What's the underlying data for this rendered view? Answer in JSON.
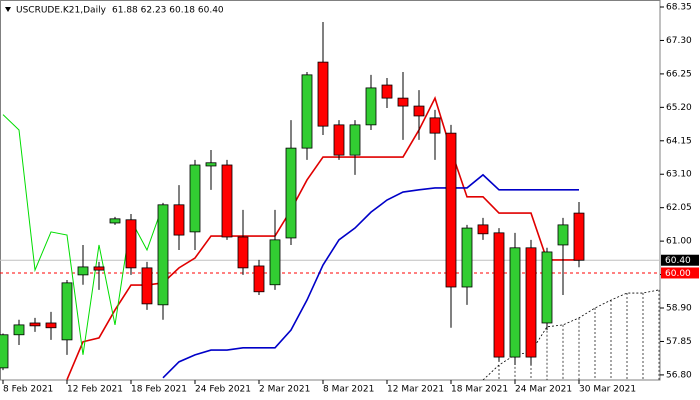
{
  "chart_data": {
    "type": "candlestick",
    "title": "USCRUDE.K21,Daily",
    "ohlc_text": "61.88 62.23 60.18 60.40",
    "categories": [
      "8 Feb 2021",
      null,
      null,
      null,
      "12 Feb 2021",
      null,
      null,
      null,
      "18 Feb 2021",
      null,
      null,
      null,
      "24 Feb 2021",
      null,
      null,
      null,
      "2 Mar 2021",
      null,
      null,
      null,
      "8 Mar 2021",
      null,
      null,
      null,
      "12 Mar 2021",
      null,
      null,
      null,
      "18 Mar 2021",
      null,
      null,
      null,
      "24 Mar 2021",
      null,
      null,
      null,
      "30 Mar 2021",
      null,
      null,
      null,
      null,
      null
    ],
    "open": [
      57.02,
      58.06,
      58.43,
      58.43,
      57.9,
      59.94,
      60.19,
      61.57,
      61.67,
      60.16,
      59.0,
      62.14,
      61.29,
      63.36,
      63.39,
      61.13,
      60.22,
      59.63,
      61.1,
      63.92,
      66.62,
      64.65,
      63.7,
      64.65,
      65.9,
      65.49,
      65.24,
      64.87,
      64.39,
      59.56,
      61.51,
      61.26,
      57.36,
      60.79,
      58.43,
      60.88,
      61.88,
      null,
      null,
      null,
      null,
      null
    ],
    "high": [
      58.1,
      58.53,
      58.59,
      58.78,
      59.78,
      60.88,
      60.35,
      61.76,
      61.85,
      60.35,
      62.2,
      62.76,
      63.55,
      63.86,
      63.55,
      61.98,
      60.41,
      61.98,
      64.8,
      66.31,
      67.88,
      64.8,
      64.8,
      66.22,
      66.12,
      66.31,
      65.74,
      65.12,
      64.65,
      61.51,
      61.73,
      61.41,
      61.26,
      61.04,
      60.79,
      61.73,
      62.23,
      null,
      null,
      null,
      null,
      null
    ],
    "low": [
      56.95,
      57.74,
      58.15,
      57.9,
      57.43,
      59.63,
      59.47,
      61.51,
      59.94,
      58.84,
      58.53,
      60.72,
      60.72,
      62.61,
      61.04,
      59.94,
      59.31,
      59.47,
      60.88,
      63.55,
      64.33,
      63.55,
      63.08,
      64.49,
      65.18,
      64.18,
      64.18,
      63.55,
      58.28,
      59.0,
      61.04,
      57.21,
      57.11,
      57.11,
      58.21,
      59.31,
      60.18,
      null,
      null,
      null,
      null,
      null
    ],
    "close": [
      58.06,
      58.37,
      58.34,
      58.28,
      59.69,
      60.19,
      60.09,
      61.7,
      60.16,
      59.03,
      62.14,
      61.19,
      63.39,
      63.46,
      61.13,
      60.16,
      59.41,
      61.04,
      63.92,
      66.22,
      64.61,
      63.7,
      64.65,
      65.81,
      65.49,
      65.24,
      64.93,
      64.39,
      59.56,
      61.41,
      61.23,
      57.36,
      60.79,
      57.36,
      60.66,
      61.51,
      60.4,
      null,
      null,
      null,
      null,
      null
    ],
    "up_color": "#32cd32",
    "down_color": "#ff0000",
    "lines": [
      {
        "color": "#e00000",
        "width": 1.6,
        "dash": false,
        "values": [
          null,
          null,
          null,
          null,
          56.65,
          57.84,
          57.96,
          58.84,
          59.62,
          59.62,
          59.69,
          60.16,
          60.47,
          61.16,
          61.16,
          61.16,
          61.16,
          61.16,
          61.98,
          62.92,
          63.64,
          63.64,
          63.64,
          63.64,
          63.64,
          63.64,
          64.49,
          65.49,
          63.86,
          62.39,
          62.39,
          61.88,
          61.88,
          61.88,
          60.41,
          60.41,
          60.41,
          null,
          null,
          null,
          null,
          null
        ]
      },
      {
        "color": "#0000c8",
        "width": 1.6,
        "dash": false,
        "values": [
          null,
          null,
          null,
          null,
          null,
          null,
          null,
          null,
          null,
          null,
          56.71,
          57.21,
          57.43,
          57.58,
          57.58,
          57.65,
          57.65,
          57.65,
          58.21,
          59.15,
          60.25,
          61.04,
          61.41,
          61.91,
          62.29,
          62.54,
          62.61,
          62.67,
          62.67,
          62.67,
          63.08,
          62.61,
          62.61,
          62.61,
          62.61,
          62.61,
          62.61,
          null,
          null,
          null,
          null,
          null
        ]
      },
      {
        "color": "#00dd00",
        "width": 1,
        "dash": false,
        "values": [
          64.97,
          64.49,
          60.09,
          61.29,
          61.19,
          57.43,
          60.88,
          58.37,
          61.66,
          60.72,
          62.14,
          null,
          null,
          null,
          null,
          null,
          null,
          null,
          null,
          null,
          null,
          null,
          null,
          null,
          null,
          null,
          null,
          null,
          null,
          null,
          null,
          null,
          null,
          null,
          null,
          null,
          null,
          null,
          null,
          null,
          null,
          null
        ]
      },
      {
        "color": "#000000",
        "width": 0.8,
        "dash": true,
        "hatch": true,
        "values": [
          null,
          null,
          null,
          null,
          null,
          null,
          null,
          null,
          null,
          null,
          null,
          null,
          null,
          null,
          null,
          null,
          null,
          null,
          null,
          null,
          null,
          null,
          null,
          null,
          null,
          null,
          null,
          null,
          null,
          null,
          56.64,
          57.11,
          57.43,
          57.52,
          58.31,
          58.37,
          58.59,
          58.9,
          59.15,
          59.37,
          59.37,
          59.47
        ]
      }
    ],
    "levels": [
      {
        "value": 60.4,
        "label": "60.40",
        "color": "#c0c0c0",
        "dash": false,
        "label_fill": "#000000"
      },
      {
        "value": 60,
        "label": "60.00",
        "color": "#ff0000",
        "dash": true,
        "label_fill": "#ff0000"
      }
    ],
    "ylim": [
      56.64,
      68.57
    ],
    "yticks": [
      {
        "value": 68.35,
        "label": "68.35"
      },
      {
        "value": 67.3,
        "label": "67.30"
      },
      {
        "value": 66.25,
        "label": "66.25"
      },
      {
        "value": 65.2,
        "label": "65.20"
      },
      {
        "value": 64.15,
        "label": "64.15"
      },
      {
        "value": 63.1,
        "label": "63.10"
      },
      {
        "value": 62.05,
        "label": "62.05"
      },
      {
        "value": 61,
        "label": "61.00"
      },
      {
        "value": 59.95,
        "label": "59.95"
      },
      {
        "value": 58.9,
        "label": "58.90"
      },
      {
        "value": 57.85,
        "label": "57.85"
      },
      {
        "value": 56.8,
        "label": "56.80"
      }
    ]
  }
}
